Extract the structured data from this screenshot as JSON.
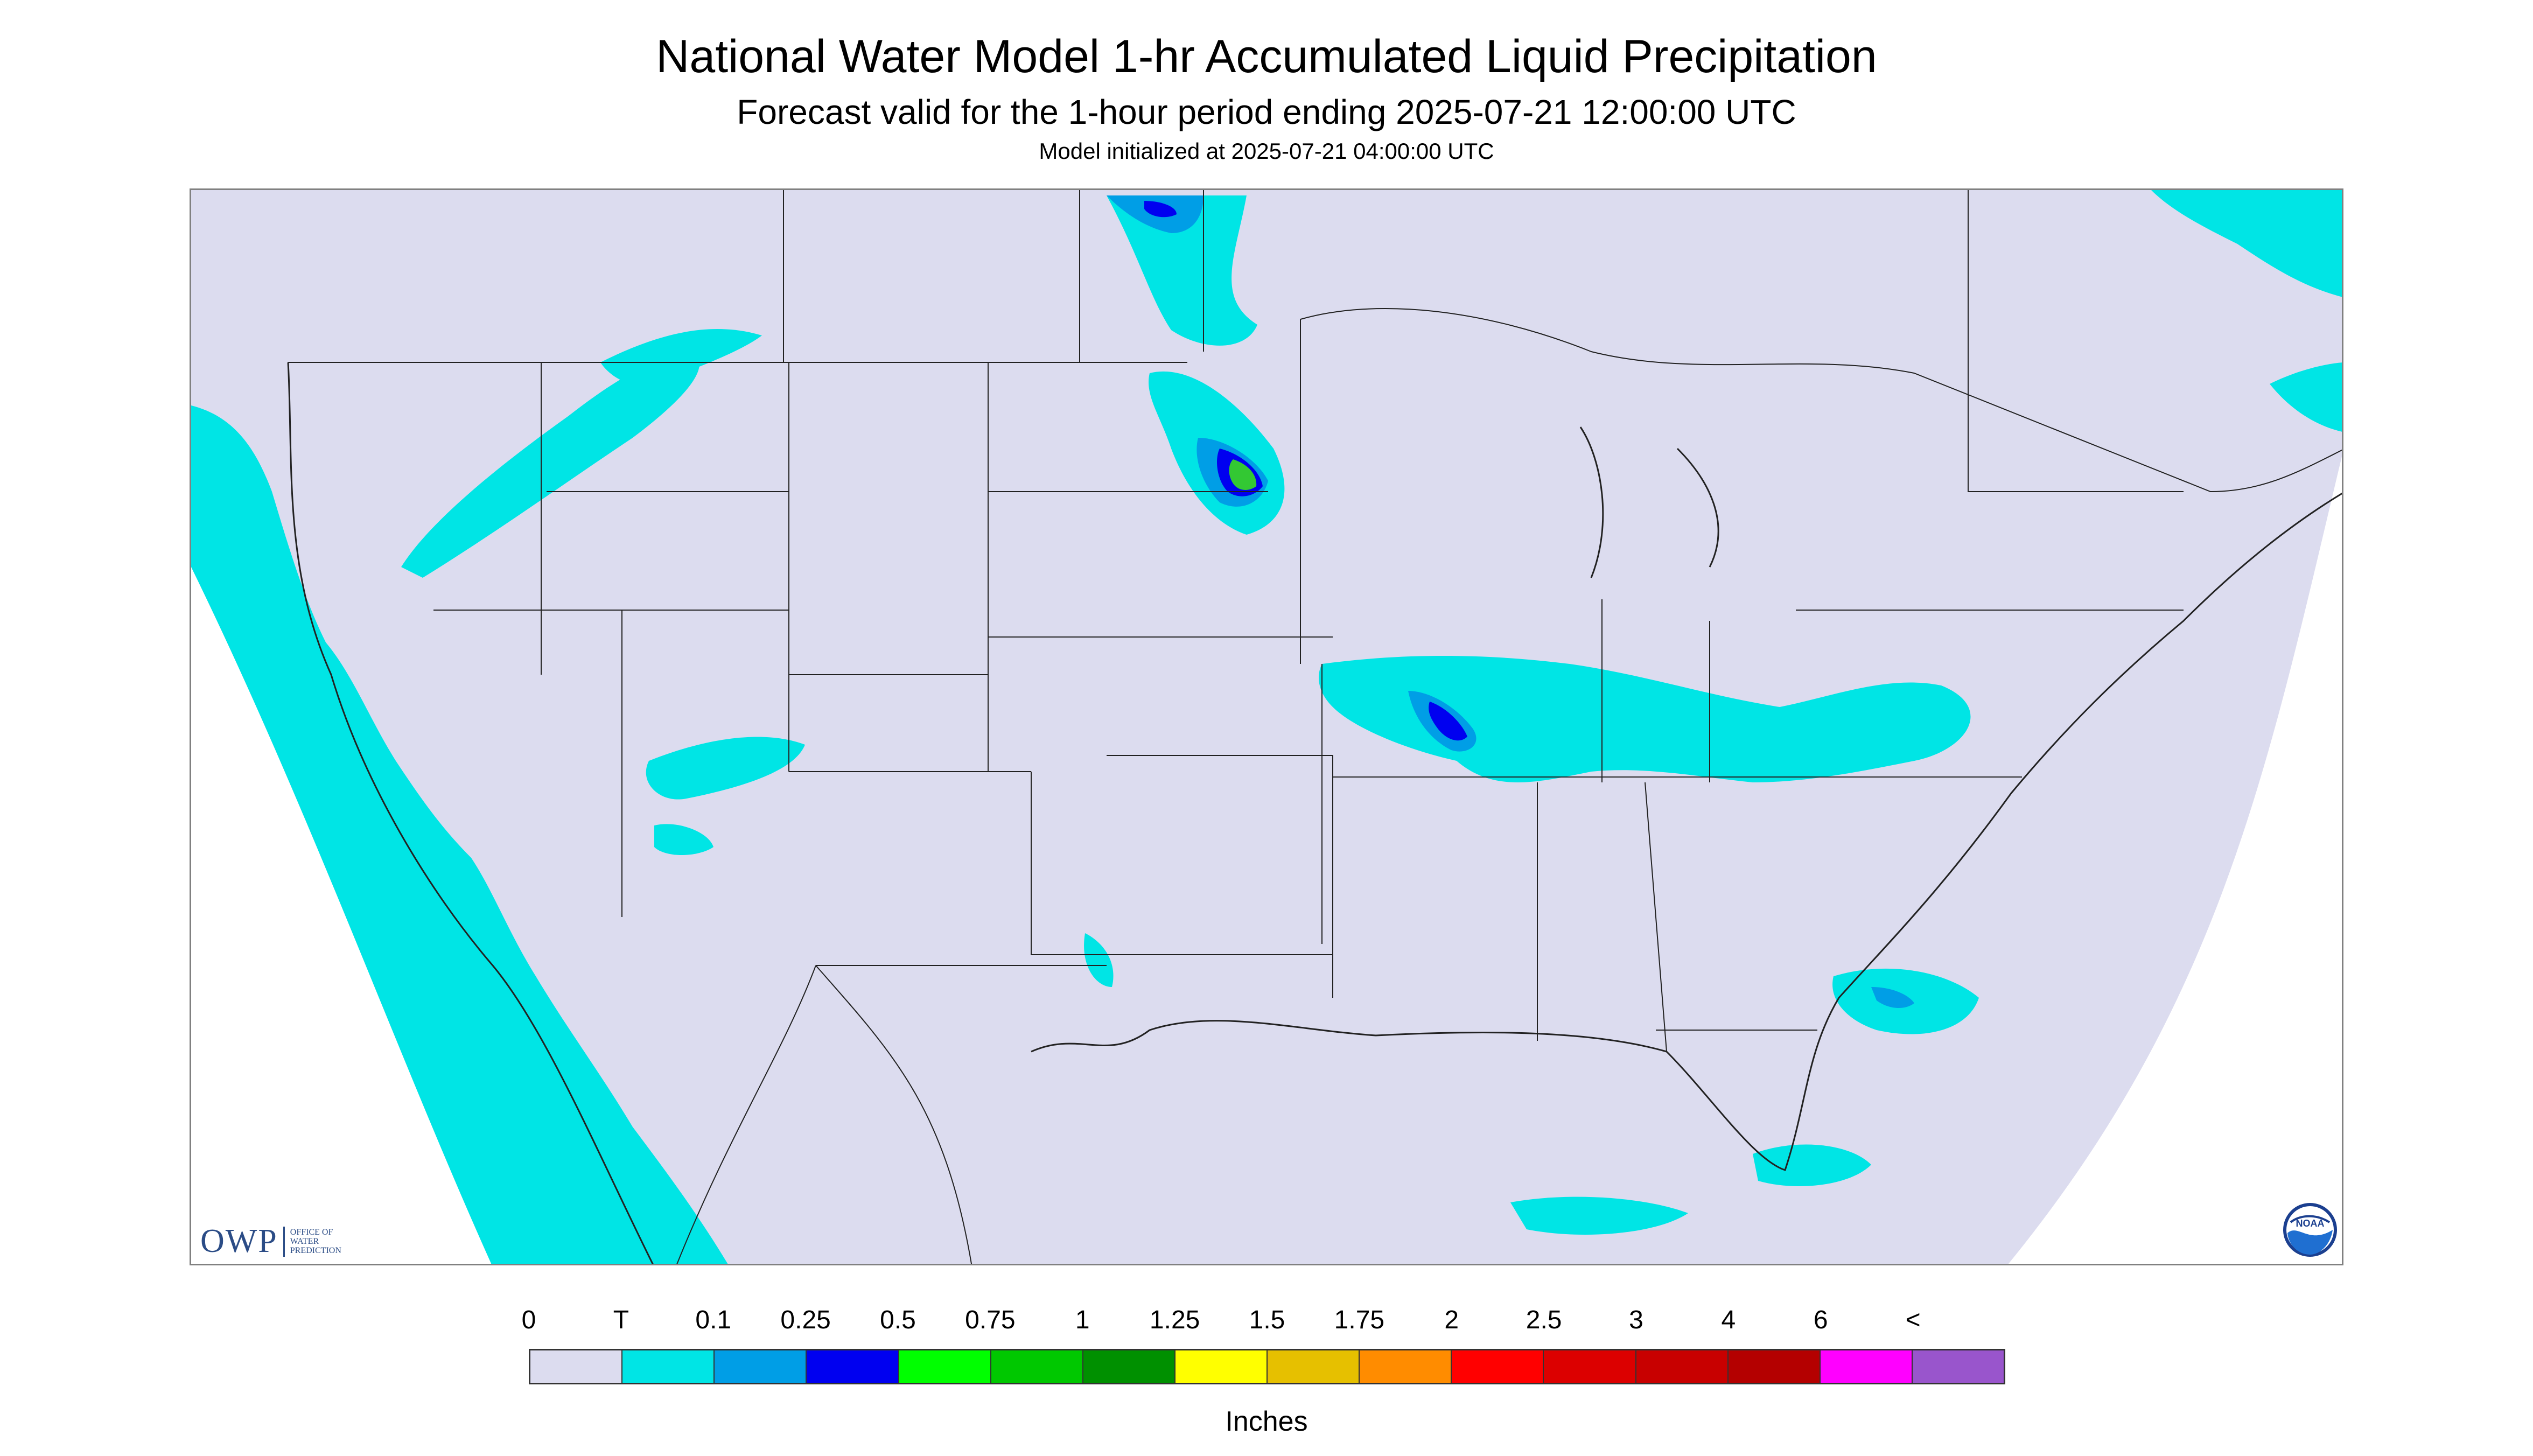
{
  "header": {
    "title": "National Water Model 1-hr Accumulated Liquid Precipitation",
    "subtitle": "Forecast valid for the 1-hour period ending 2025-07-21 12:00:00 UTC",
    "initialized": "Model initialized at 2025-07-21 04:00:00 UTC"
  },
  "map": {
    "background_color": "#dcdcef",
    "outside_domain_color": "#ffffff",
    "trace_color": "#00e5e5",
    "light_blue_color": "#009ee6",
    "blue_color": "#0000f0",
    "green_color": "#33c833",
    "boundary_color": "#222222"
  },
  "logos": {
    "owp": {
      "letters": "OWP",
      "line1": "OFFICE OF",
      "line2": "WATER",
      "line3": "PREDICTION"
    },
    "noaa": {
      "text": "NOAA",
      "icon": "noaa-seal-icon"
    }
  },
  "legend": {
    "units": "Inches",
    "labels": [
      "0",
      "T",
      "0.1",
      "0.25",
      "0.5",
      "0.75",
      "1",
      "1.25",
      "1.5",
      "1.75",
      "2",
      "2.5",
      "3",
      "4",
      "6",
      "<"
    ],
    "colors": [
      "#dcdcef",
      "#00e5e5",
      "#009ee6",
      "#0000f0",
      "#00ff00",
      "#00c800",
      "#009000",
      "#ffff00",
      "#e6c000",
      "#ff8c00",
      "#ff0000",
      "#dc0000",
      "#c80000",
      "#b40000",
      "#ff00ff",
      "#9955cc"
    ]
  }
}
